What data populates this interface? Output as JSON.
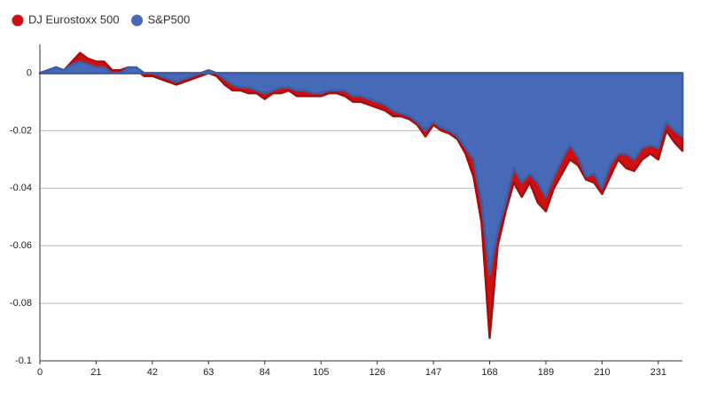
{
  "chart_data": {
    "type": "area",
    "x": [
      0,
      3,
      6,
      9,
      12,
      15,
      18,
      21,
      24,
      27,
      30,
      33,
      36,
      39,
      42,
      45,
      48,
      51,
      54,
      57,
      60,
      63,
      66,
      69,
      72,
      75,
      78,
      81,
      84,
      87,
      90,
      93,
      96,
      99,
      102,
      105,
      108,
      111,
      114,
      117,
      120,
      123,
      126,
      129,
      132,
      135,
      138,
      141,
      144,
      147,
      150,
      153,
      156,
      159,
      162,
      165,
      168,
      171,
      174,
      177,
      180,
      183,
      186,
      189,
      192,
      195,
      198,
      201,
      204,
      207,
      210,
      213,
      216,
      219,
      222,
      225,
      228,
      231,
      234,
      237,
      240
    ],
    "series": [
      {
        "name": "DJ Eurostoxx 500",
        "color": "#cc1111",
        "stroke": "#a80d0d",
        "values": [
          0,
          0.001,
          0.002,
          0.001,
          0.004,
          0.007,
          0.005,
          0.004,
          0.004,
          0.001,
          0.001,
          0.002,
          0.001,
          -0.001,
          -0.001,
          -0.002,
          -0.003,
          -0.004,
          -0.003,
          -0.002,
          -0.001,
          0,
          -0.001,
          -0.004,
          -0.006,
          -0.006,
          -0.007,
          -0.007,
          -0.009,
          -0.007,
          -0.007,
          -0.006,
          -0.008,
          -0.008,
          -0.008,
          -0.008,
          -0.007,
          -0.007,
          -0.008,
          -0.01,
          -0.01,
          -0.011,
          -0.012,
          -0.013,
          -0.015,
          -0.015,
          -0.016,
          -0.018,
          -0.022,
          -0.018,
          -0.02,
          -0.021,
          -0.023,
          -0.028,
          -0.036,
          -0.052,
          -0.092,
          -0.06,
          -0.048,
          -0.038,
          -0.043,
          -0.038,
          -0.045,
          -0.048,
          -0.04,
          -0.035,
          -0.03,
          -0.032,
          -0.037,
          -0.038,
          -0.042,
          -0.036,
          -0.03,
          -0.033,
          -0.034,
          -0.03,
          -0.028,
          -0.03,
          -0.02,
          -0.024,
          -0.027
        ]
      },
      {
        "name": "S&P500",
        "color": "#4669b8",
        "stroke": "#3d5ea6",
        "values": [
          0,
          0.001,
          0.002,
          0.001,
          0.003,
          0.004,
          0.003,
          0.002,
          0.002,
          0,
          0,
          0.002,
          0.002,
          0,
          0,
          -0.001,
          -0.002,
          -0.003,
          -0.002,
          -0.001,
          0,
          0.001,
          0,
          -0.002,
          -0.004,
          -0.005,
          -0.005,
          -0.006,
          -0.007,
          -0.006,
          -0.005,
          -0.005,
          -0.006,
          -0.006,
          -0.007,
          -0.007,
          -0.006,
          -0.006,
          -0.006,
          -0.008,
          -0.008,
          -0.009,
          -0.01,
          -0.011,
          -0.013,
          -0.014,
          -0.015,
          -0.017,
          -0.02,
          -0.017,
          -0.019,
          -0.02,
          -0.022,
          -0.026,
          -0.03,
          -0.045,
          -0.07,
          -0.055,
          -0.045,
          -0.033,
          -0.038,
          -0.035,
          -0.038,
          -0.043,
          -0.036,
          -0.03,
          -0.025,
          -0.029,
          -0.036,
          -0.035,
          -0.04,
          -0.032,
          -0.028,
          -0.028,
          -0.03,
          -0.026,
          -0.025,
          -0.026,
          -0.017,
          -0.02,
          -0.022
        ]
      }
    ],
    "xlim": [
      0,
      240
    ],
    "xticks": [
      0,
      21,
      42,
      63,
      84,
      105,
      126,
      147,
      168,
      189,
      210,
      231
    ],
    "ylim": [
      -0.1,
      0.01
    ],
    "yticks": [
      0,
      -0.02,
      -0.04,
      -0.06,
      -0.08,
      -0.1
    ],
    "grid": true,
    "legend": "top-left"
  }
}
